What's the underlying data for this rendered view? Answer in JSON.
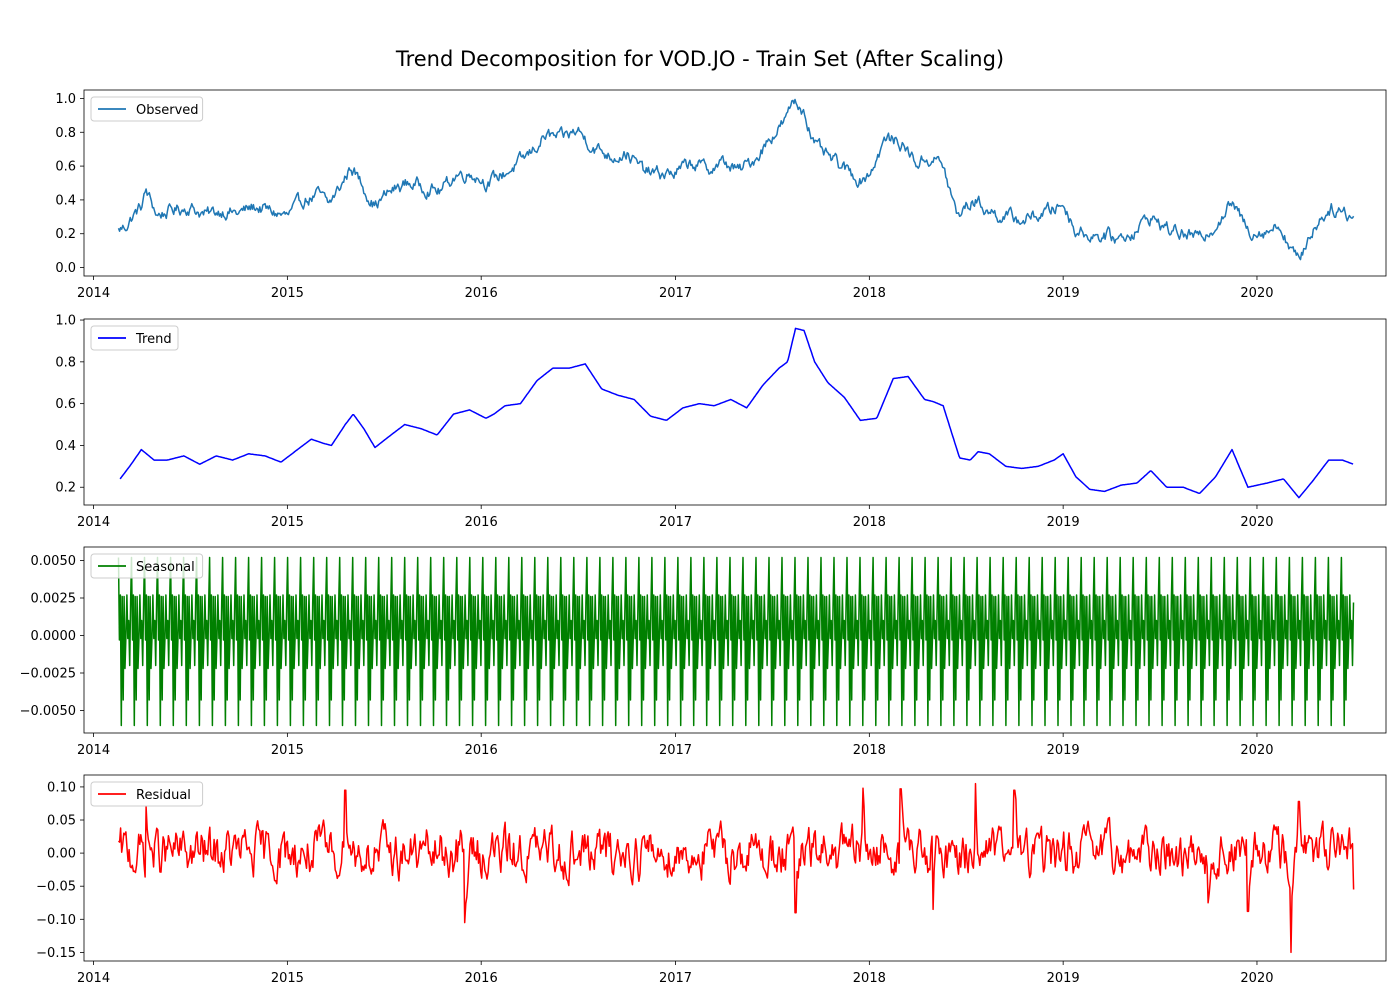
{
  "chart_data": {
    "title": "Trend Decomposition for VOD.JO - Train Set (After Scaling)",
    "x_start": "2014-02-17",
    "x_end": "2020-07-01",
    "xlim": [
      "2013-12-14",
      "2020-08-31"
    ],
    "x_ticks": [
      "2014",
      "2015",
      "2016",
      "2017",
      "2018",
      "2019",
      "2020"
    ],
    "panels": [
      {
        "type": "line",
        "name": "Observed",
        "legend": "top-left",
        "color": "#1f77b4",
        "ylim": [
          -0.05,
          1.05
        ],
        "y_ticks": [
          0.0,
          0.2,
          0.4,
          0.6,
          0.8,
          1.0
        ],
        "y_tick_labels": [
          "0.0",
          "0.2",
          "0.4",
          "0.6",
          "0.8",
          "1.0"
        ],
        "noise": 0.03,
        "values": [
          [
            "2014-02-17",
            0.22
          ],
          [
            "2014-03-01",
            0.24
          ],
          [
            "2014-03-15",
            0.3
          ],
          [
            "2014-04-01",
            0.36
          ],
          [
            "2014-04-10",
            0.45
          ],
          [
            "2014-05-01",
            0.31
          ],
          [
            "2014-06-01",
            0.34
          ],
          [
            "2014-07-01",
            0.36
          ],
          [
            "2014-08-01",
            0.31
          ],
          [
            "2014-09-01",
            0.34
          ],
          [
            "2014-10-01",
            0.32
          ],
          [
            "2014-11-01",
            0.36
          ],
          [
            "2014-12-01",
            0.33
          ],
          [
            "2015-01-01",
            0.3
          ],
          [
            "2015-02-01",
            0.4
          ],
          [
            "2015-03-01",
            0.43
          ],
          [
            "2015-03-20",
            0.37
          ],
          [
            "2015-04-15",
            0.5
          ],
          [
            "2015-05-01",
            0.6
          ],
          [
            "2015-05-20",
            0.5
          ],
          [
            "2015-06-15",
            0.37
          ],
          [
            "2015-07-15",
            0.45
          ],
          [
            "2015-08-15",
            0.5
          ],
          [
            "2015-09-15",
            0.48
          ],
          [
            "2015-10-15",
            0.45
          ],
          [
            "2015-11-15",
            0.55
          ],
          [
            "2015-12-15",
            0.56
          ],
          [
            "2016-01-15",
            0.5
          ],
          [
            "2016-02-15",
            0.56
          ],
          [
            "2016-03-15",
            0.62
          ],
          [
            "2016-04-01",
            0.67
          ],
          [
            "2016-05-01",
            0.78
          ],
          [
            "2016-06-01",
            0.76
          ],
          [
            "2016-07-01",
            0.81
          ],
          [
            "2016-08-01",
            0.71
          ],
          [
            "2016-09-01",
            0.66
          ],
          [
            "2016-10-01",
            0.68
          ],
          [
            "2016-11-01",
            0.57
          ],
          [
            "2016-12-01",
            0.55
          ],
          [
            "2017-01-01",
            0.56
          ],
          [
            "2017-02-01",
            0.62
          ],
          [
            "2017-03-01",
            0.58
          ],
          [
            "2017-04-01",
            0.62
          ],
          [
            "2017-05-01",
            0.57
          ],
          [
            "2017-06-01",
            0.65
          ],
          [
            "2017-07-01",
            0.78
          ],
          [
            "2017-08-01",
            0.89
          ],
          [
            "2017-08-10",
            0.99
          ],
          [
            "2017-09-01",
            0.93
          ],
          [
            "2017-09-20",
            0.72
          ],
          [
            "2017-10-15",
            0.65
          ],
          [
            "2017-11-15",
            0.58
          ],
          [
            "2017-12-15",
            0.52
          ],
          [
            "2018-01-01",
            0.56
          ],
          [
            "2018-02-01",
            0.76
          ],
          [
            "2018-03-01",
            0.74
          ],
          [
            "2018-04-01",
            0.62
          ],
          [
            "2018-05-01",
            0.65
          ],
          [
            "2018-05-20",
            0.6
          ],
          [
            "2018-06-15",
            0.3
          ],
          [
            "2018-07-01",
            0.36
          ],
          [
            "2018-07-20",
            0.4
          ],
          [
            "2018-08-15",
            0.33
          ],
          [
            "2018-09-15",
            0.3
          ],
          [
            "2018-10-15",
            0.28
          ],
          [
            "2018-11-15",
            0.31
          ],
          [
            "2018-12-15",
            0.35
          ],
          [
            "2019-01-01",
            0.38
          ],
          [
            "2019-01-25",
            0.22
          ],
          [
            "2019-02-15",
            0.2
          ],
          [
            "2019-03-15",
            0.19
          ],
          [
            "2019-04-15",
            0.17
          ],
          [
            "2019-05-15",
            0.22
          ],
          [
            "2019-06-15",
            0.3
          ],
          [
            "2019-07-15",
            0.23
          ],
          [
            "2019-08-15",
            0.2
          ],
          [
            "2019-09-15",
            0.17
          ],
          [
            "2019-10-15",
            0.26
          ],
          [
            "2019-11-15",
            0.38
          ],
          [
            "2019-12-15",
            0.22
          ],
          [
            "2020-01-15",
            0.22
          ],
          [
            "2020-02-15",
            0.25
          ],
          [
            "2020-03-01",
            0.14
          ],
          [
            "2020-03-20",
            0.03
          ],
          [
            "2020-04-10",
            0.2
          ],
          [
            "2020-05-01",
            0.3
          ],
          [
            "2020-05-20",
            0.35
          ],
          [
            "2020-06-10",
            0.34
          ],
          [
            "2020-07-01",
            0.3
          ]
        ]
      },
      {
        "type": "line",
        "name": "Trend",
        "legend": "top-left",
        "color": "#0000ff",
        "ylim": [
          0.115,
          1.005
        ],
        "y_ticks": [
          0.2,
          0.4,
          0.6,
          0.8,
          1.0
        ],
        "y_tick_labels": [
          "0.2",
          "0.4",
          "0.6",
          "0.8",
          "1.0"
        ],
        "values": [
          [
            "2014-02-20",
            0.24
          ],
          [
            "2014-03-10",
            0.3
          ],
          [
            "2014-04-01",
            0.38
          ],
          [
            "2014-04-25",
            0.33
          ],
          [
            "2014-05-20",
            0.33
          ],
          [
            "2014-06-20",
            0.35
          ],
          [
            "2014-07-20",
            0.31
          ],
          [
            "2014-08-20",
            0.35
          ],
          [
            "2014-09-20",
            0.33
          ],
          [
            "2014-10-20",
            0.36
          ],
          [
            "2014-11-20",
            0.35
          ],
          [
            "2014-12-20",
            0.32
          ],
          [
            "2015-01-20",
            0.38
          ],
          [
            "2015-02-15",
            0.43
          ],
          [
            "2015-03-10",
            0.41
          ],
          [
            "2015-03-25",
            0.4
          ],
          [
            "2015-04-20",
            0.5
          ],
          [
            "2015-05-05",
            0.55
          ],
          [
            "2015-05-25",
            0.48
          ],
          [
            "2015-06-15",
            0.39
          ],
          [
            "2015-07-10",
            0.44
          ],
          [
            "2015-08-10",
            0.5
          ],
          [
            "2015-09-10",
            0.48
          ],
          [
            "2015-10-10",
            0.45
          ],
          [
            "2015-11-10",
            0.55
          ],
          [
            "2015-12-10",
            0.57
          ],
          [
            "2016-01-10",
            0.53
          ],
          [
            "2016-01-25",
            0.55
          ],
          [
            "2016-02-15",
            0.59
          ],
          [
            "2016-03-15",
            0.6
          ],
          [
            "2016-04-15",
            0.71
          ],
          [
            "2016-05-15",
            0.77
          ],
          [
            "2016-06-15",
            0.77
          ],
          [
            "2016-07-15",
            0.79
          ],
          [
            "2016-08-15",
            0.67
          ],
          [
            "2016-09-15",
            0.64
          ],
          [
            "2016-10-15",
            0.62
          ],
          [
            "2016-11-15",
            0.54
          ],
          [
            "2016-12-15",
            0.52
          ],
          [
            "2017-01-15",
            0.58
          ],
          [
            "2017-02-15",
            0.6
          ],
          [
            "2017-03-15",
            0.59
          ],
          [
            "2017-04-15",
            0.62
          ],
          [
            "2017-05-15",
            0.58
          ],
          [
            "2017-06-15",
            0.69
          ],
          [
            "2017-07-15",
            0.77
          ],
          [
            "2017-07-31",
            0.8
          ],
          [
            "2017-08-15",
            0.96
          ],
          [
            "2017-08-31",
            0.95
          ],
          [
            "2017-09-20",
            0.8
          ],
          [
            "2017-10-15",
            0.7
          ],
          [
            "2017-11-15",
            0.63
          ],
          [
            "2017-12-15",
            0.52
          ],
          [
            "2018-01-15",
            0.53
          ],
          [
            "2018-02-15",
            0.72
          ],
          [
            "2018-03-15",
            0.73
          ],
          [
            "2018-04-15",
            0.62
          ],
          [
            "2018-05-01",
            0.61
          ],
          [
            "2018-05-20",
            0.59
          ],
          [
            "2018-06-20",
            0.34
          ],
          [
            "2018-07-10",
            0.33
          ],
          [
            "2018-07-25",
            0.37
          ],
          [
            "2018-08-15",
            0.36
          ],
          [
            "2018-09-15",
            0.3
          ],
          [
            "2018-10-15",
            0.29
          ],
          [
            "2018-11-15",
            0.3
          ],
          [
            "2018-12-15",
            0.33
          ],
          [
            "2019-01-01",
            0.36
          ],
          [
            "2019-01-25",
            0.25
          ],
          [
            "2019-02-20",
            0.19
          ],
          [
            "2019-03-20",
            0.18
          ],
          [
            "2019-04-20",
            0.21
          ],
          [
            "2019-05-20",
            0.22
          ],
          [
            "2019-06-15",
            0.28
          ],
          [
            "2019-07-15",
            0.2
          ],
          [
            "2019-08-15",
            0.2
          ],
          [
            "2019-09-15",
            0.17
          ],
          [
            "2019-10-15",
            0.25
          ],
          [
            "2019-11-15",
            0.38
          ],
          [
            "2019-12-15",
            0.2
          ],
          [
            "2020-01-20",
            0.22
          ],
          [
            "2020-02-20",
            0.24
          ],
          [
            "2020-03-20",
            0.15
          ],
          [
            "2020-04-15",
            0.23
          ],
          [
            "2020-05-15",
            0.33
          ],
          [
            "2020-06-10",
            0.33
          ],
          [
            "2020-07-01",
            0.31
          ]
        ]
      },
      {
        "type": "line",
        "name": "Seasonal",
        "legend": "top-left",
        "color": "#008000",
        "ylim": [
          -0.0065,
          0.0059
        ],
        "y_ticks": [
          -0.005,
          -0.0025,
          0.0,
          0.0025,
          0.005
        ],
        "y_tick_labels": [
          "−0.0050",
          "−0.0025",
          "0.0000",
          "0.0025",
          "0.0050"
        ],
        "period_days": 14,
        "pattern": [
          0.0052,
          -0.0003,
          0.0027,
          -0.006,
          0.0026,
          -0.0043,
          0.0026,
          -0.0022,
          -0.0001,
          0.0027,
          -0.0002,
          0.001,
          -0.002,
          0.0022
        ]
      },
      {
        "type": "line",
        "name": "Residual",
        "legend": "top-left",
        "color": "#ff0000",
        "ylim": [
          -0.163,
          0.118
        ],
        "y_ticks": [
          -0.15,
          -0.1,
          -0.05,
          0.0,
          0.05,
          0.1
        ],
        "y_tick_labels": [
          "−0.15",
          "−0.10",
          "−0.05",
          "0.00",
          "0.05",
          "0.10"
        ],
        "noise": 0.028,
        "spikes": [
          [
            "2014-04-10",
            0.07
          ],
          [
            "2015-04-20",
            0.095
          ],
          [
            "2015-12-01",
            -0.105
          ],
          [
            "2017-08-15",
            -0.09
          ],
          [
            "2017-12-20",
            0.098
          ],
          [
            "2018-03-01",
            0.097
          ],
          [
            "2018-07-20",
            0.105
          ],
          [
            "2018-05-01",
            -0.085
          ],
          [
            "2018-10-01",
            0.095
          ],
          [
            "2019-10-01",
            -0.075
          ],
          [
            "2019-12-15",
            -0.088
          ],
          [
            "2020-03-05",
            -0.15
          ],
          [
            "2020-03-20",
            0.078
          ],
          [
            "2020-07-01",
            -0.055
          ]
        ]
      }
    ]
  }
}
